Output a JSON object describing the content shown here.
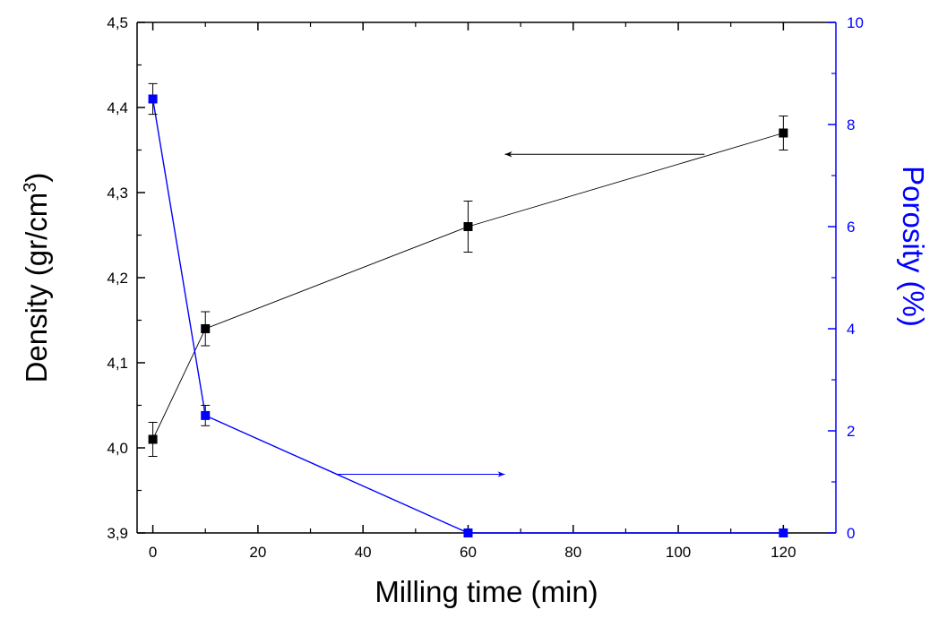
{
  "chart_data": {
    "type": "line",
    "xlabel": "Milling time (min)",
    "ylabel_left": {
      "text": "Density (gr/cm",
      "superscript": "3",
      "suffix": ")"
    },
    "ylabel_right": "Porosity (%)",
    "xlim": [
      -3,
      130
    ],
    "ylim_left": [
      3.9,
      4.5
    ],
    "ylim_right": [
      0,
      10
    ],
    "x_ticks": [
      0,
      20,
      40,
      60,
      80,
      100,
      120
    ],
    "x_tick_labels": [
      "0",
      "20",
      "40",
      "60",
      "80",
      "100",
      "120"
    ],
    "y_left_ticks": [
      3.9,
      4.0,
      4.1,
      4.2,
      4.3,
      4.4,
      4.5
    ],
    "y_left_tick_labels": [
      "3,9",
      "4,0",
      "4,1",
      "4,2",
      "4,3",
      "4,4",
      "4,5"
    ],
    "y_right_ticks": [
      0,
      2,
      4,
      6,
      8,
      10
    ],
    "y_right_tick_labels": [
      "0",
      "2",
      "4",
      "6",
      "8",
      "10"
    ],
    "grid": false,
    "series": [
      {
        "axis": "left",
        "color": "#000000",
        "marker": "square",
        "x": [
          0,
          10,
          60,
          120
        ],
        "y": [
          4.01,
          4.14,
          4.26,
          4.37
        ],
        "error": [
          0.02,
          0.02,
          0.03,
          0.02
        ]
      },
      {
        "axis": "right",
        "color": "#0000ff",
        "marker": "square",
        "x": [
          0,
          10,
          60,
          120
        ],
        "y": [
          8.5,
          2.3,
          0.0,
          0.0
        ],
        "error": [
          0.3,
          0.2,
          0.0,
          0.0
        ]
      }
    ],
    "annotations": [
      {
        "type": "arrow",
        "color": "#000000",
        "axis": "left",
        "from": [
          105,
          4.345
        ],
        "to": [
          67,
          4.345
        ]
      },
      {
        "type": "arrow",
        "color": "#0000ff",
        "axis": "right",
        "from": [
          35,
          1.15
        ],
        "to": [
          67,
          1.15
        ]
      }
    ]
  }
}
